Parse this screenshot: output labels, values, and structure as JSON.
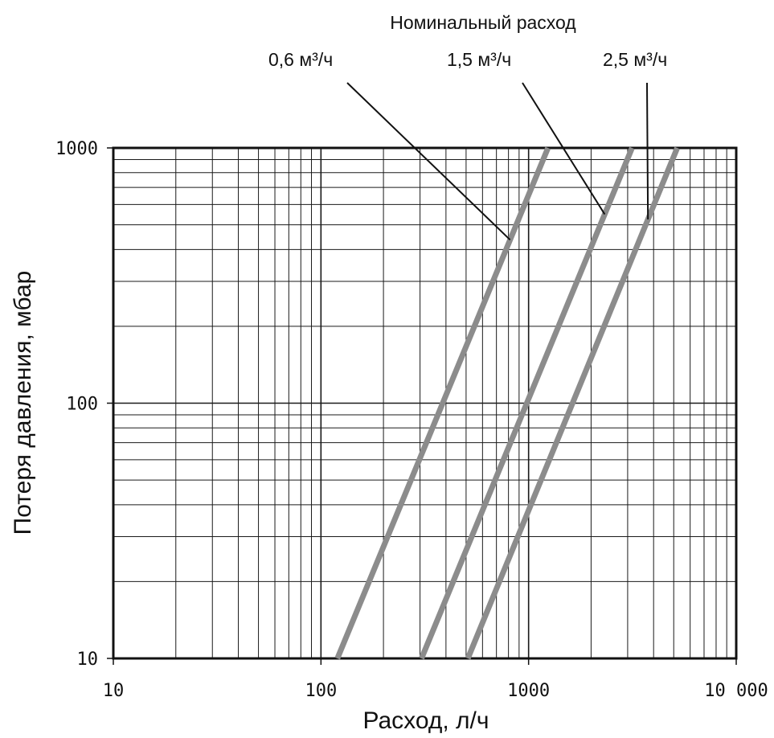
{
  "chart_data": {
    "type": "line",
    "title": "Номинальный расход",
    "xlabel": "Расход, л/ч",
    "ylabel": "Потеря давления, мбар",
    "xscale": "log",
    "yscale": "log",
    "xlim": [
      10,
      10000
    ],
    "ylim": [
      10,
      1000
    ],
    "x_ticks": [
      {
        "value": 10,
        "label": "10"
      },
      {
        "value": 100,
        "label": "100"
      },
      {
        "value": 1000,
        "label": "1000"
      },
      {
        "value": 10000,
        "label": "10 000"
      }
    ],
    "y_ticks": [
      {
        "value": 10,
        "label": "10"
      },
      {
        "value": 100,
        "label": "100"
      },
      {
        "value": 1000,
        "label": "1000"
      }
    ],
    "grid": true,
    "line_color": "#8c8c8c",
    "series": [
      {
        "name": "0,6 м³/ч",
        "points": [
          [
            120,
            10
          ],
          [
            1240,
            1000
          ]
        ]
      },
      {
        "name": "1,5 м³/ч",
        "points": [
          [
            305,
            10
          ],
          [
            3150,
            1000
          ]
        ]
      },
      {
        "name": "2,5 м³/ч",
        "points": [
          [
            510,
            10
          ],
          [
            5200,
            1000
          ]
        ]
      }
    ]
  }
}
